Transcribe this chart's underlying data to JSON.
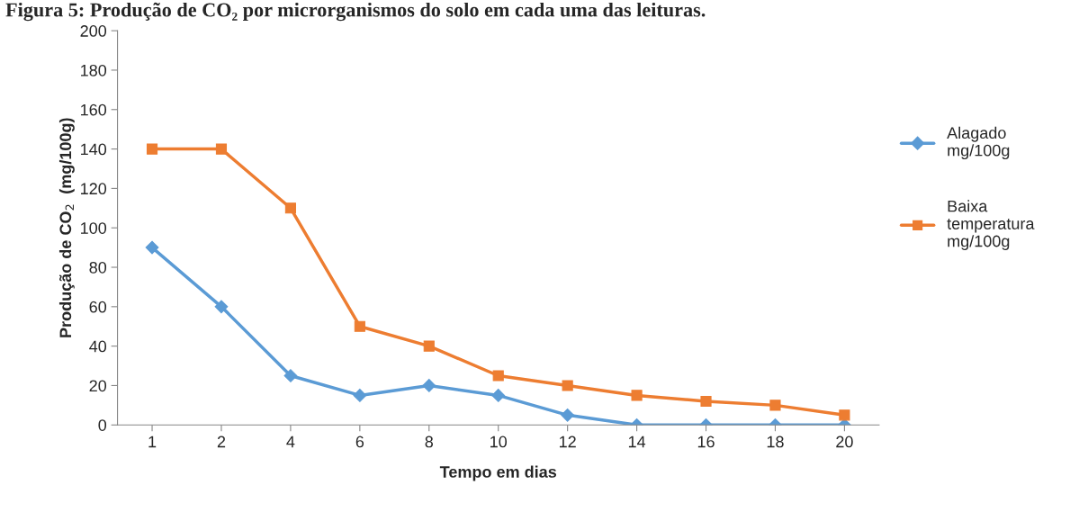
{
  "chart_data": {
    "type": "line",
    "title": "Figura 5: Produção de CO₂ por microrganismos do solo em cada uma das leituras.",
    "xlabel": "Tempo em dias",
    "ylabel": "Produção de CO$_{2}$  (mg/100g)",
    "categories": [
      "1",
      "2",
      "4",
      "6",
      "8",
      "10",
      "12",
      "14",
      "16",
      "18",
      "20"
    ],
    "series": [
      {
        "name": "Alagado\nmg/100g",
        "color": "#5b9bd5",
        "marker": "diamond",
        "values": [
          90,
          60,
          25,
          15,
          20,
          15,
          5,
          0,
          0,
          0,
          0
        ]
      },
      {
        "name": "Baixa\ntemperatura\nmg/100g",
        "color": "#ed7d31",
        "marker": "square",
        "values": [
          140,
          140,
          110,
          50,
          40,
          25,
          20,
          15,
          12,
          10,
          5
        ]
      }
    ],
    "ylim": [
      0,
      200
    ],
    "yticks": [
      0,
      20,
      40,
      60,
      80,
      100,
      120,
      140,
      160,
      180,
      200
    ],
    "grid": false,
    "legend": "right",
    "line_style": "solid"
  }
}
